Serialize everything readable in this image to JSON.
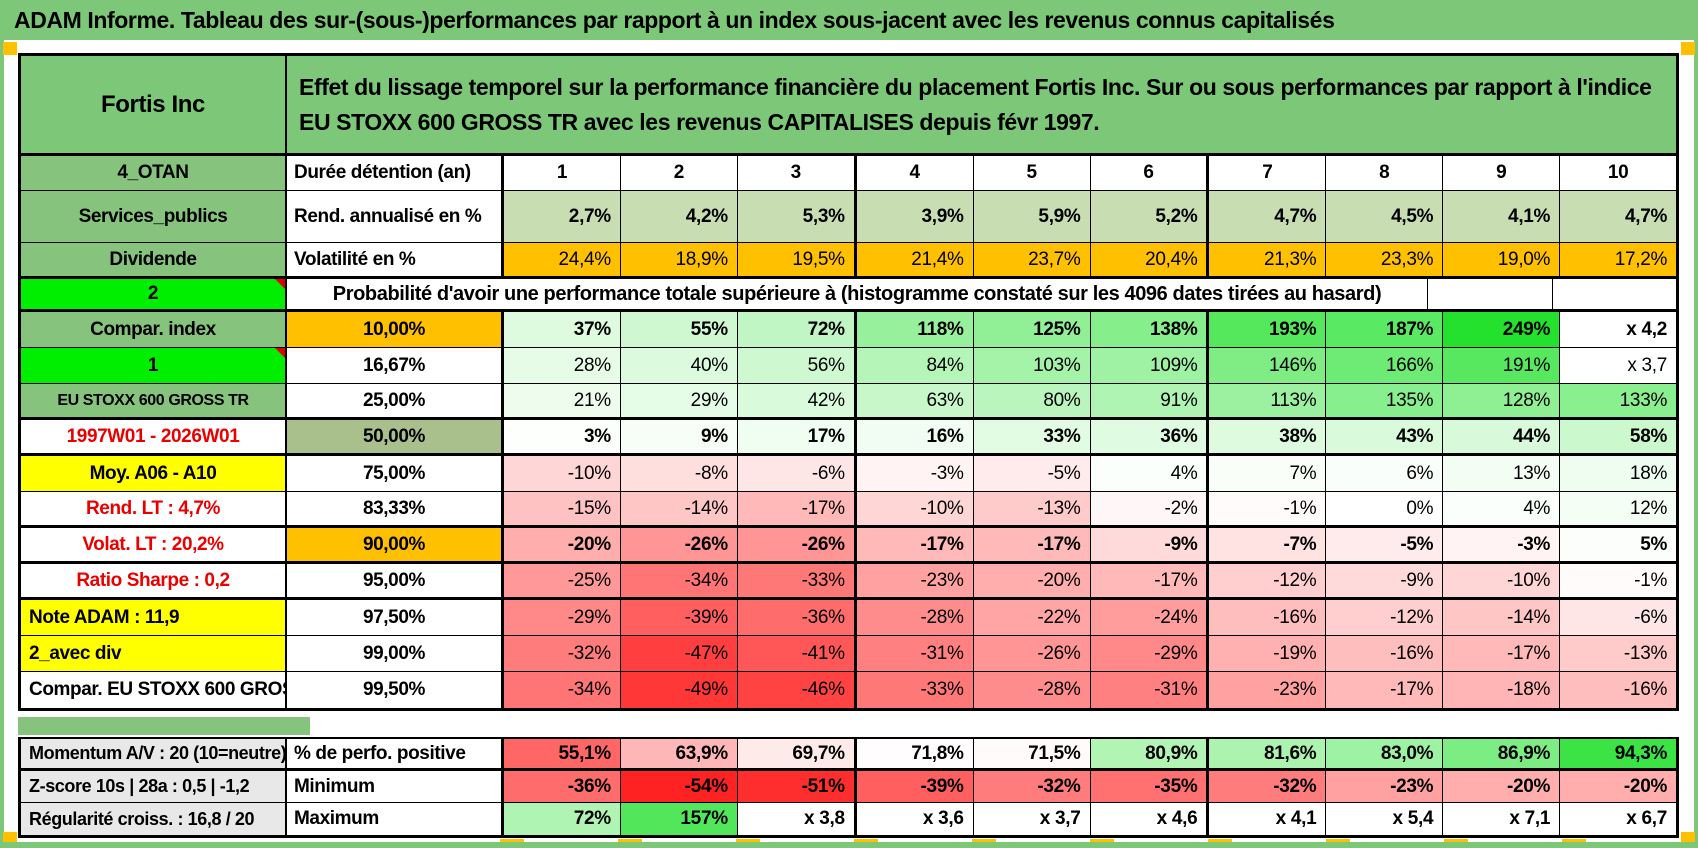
{
  "title": "ADAM Informe. Tableau des sur-(sous-)performances par rapport à un index sous-jacent avec les revenus connus capitalisés",
  "colors": {
    "frame_green": "#7cc878",
    "label_green": "#86c47d",
    "bright_green": "#00ee00",
    "highlight_yellow": "#ffff00",
    "accent_orange": "#ffc000",
    "mid_green": "#a9c08c",
    "gray_label": "#e9e8e8",
    "red_text": "#eb0000",
    "light_green_cells": "#c9ddb3",
    "heat_green_max": "#23e12d",
    "heat_red_max": "#ff1e1e"
  },
  "table": {
    "rows": [
      {
        "type": "header",
        "a": "Fortis Inc",
        "desc": "Effet du lissage temporel sur la performance financière du placement Fortis Inc. Sur ou sous performances par rapport à l'indice EU STOXX 600 GROSS TR avec les revenus CAPITALISES depuis févr 1997.",
        "thick": "b"
      },
      {
        "type": "cols",
        "a": "4_OTAN",
        "b": "Durée détention (an)",
        "cells": [
          "1",
          "2",
          "3",
          "4",
          "5",
          "6",
          "7",
          "8",
          "9",
          "10"
        ]
      },
      {
        "type": "vals",
        "a": "Services_publics",
        "b": "Rend. annualisé en %",
        "cell_bg": "#c9ddb3",
        "bold": true,
        "cells": [
          "2,7%",
          "4,2%",
          "5,3%",
          "3,9%",
          "5,9%",
          "5,2%",
          "4,7%",
          "4,5%",
          "4,1%",
          "4,7%"
        ]
      },
      {
        "type": "vals",
        "a": "Dividende",
        "b": "Volatilité en %",
        "cell_bg": "#ffc000",
        "thick": "b",
        "cells": [
          "24,4%",
          "18,9%",
          "19,5%",
          "21,4%",
          "23,7%",
          "20,4%",
          "21,3%",
          "23,3%",
          "19,0%",
          "17,2%"
        ]
      },
      {
        "type": "span",
        "a": "2",
        "a_cls": "b",
        "a_note": true,
        "tail": 2,
        "thick": "b",
        "text": "Probabilité d'avoir une performance totale supérieure à (histogramme constaté sur les 4096 dates tirées au hasard)"
      },
      {
        "type": "heat",
        "a": "Compar. index",
        "a_cls": "g",
        "b": "10,00%",
        "b_cls": "o",
        "bold": true,
        "cells": [
          "37%",
          "55%",
          "72%",
          "118%",
          "125%",
          "138%",
          "193%",
          "187%",
          "249%",
          "x 4,2"
        ]
      },
      {
        "type": "heat",
        "a": "1",
        "a_cls": "b",
        "a_note": true,
        "b": "16,67%",
        "cells": [
          "28%",
          "40%",
          "56%",
          "84%",
          "103%",
          "109%",
          "146%",
          "166%",
          "191%",
          "x 3,7"
        ]
      },
      {
        "type": "heat",
        "a": "EU STOXX 600 GROSS TR",
        "a_cls": "g small",
        "b": "25,00%",
        "thick": "b",
        "cells": [
          "21%",
          "29%",
          "42%",
          "63%",
          "80%",
          "91%",
          "113%",
          "135%",
          "128%",
          "133%"
        ]
      },
      {
        "type": "heat",
        "a": "1997W01 - 2026W01",
        "a_cls": "w redtxt",
        "b": "50,00%",
        "b_cls": "g50",
        "bold": true,
        "thick": "b",
        "cells": [
          "3%",
          "9%",
          "17%",
          "16%",
          "33%",
          "36%",
          "38%",
          "43%",
          "44%",
          "58%"
        ]
      },
      {
        "type": "heat",
        "a": "Moy. A06 - A10",
        "a_cls": "y",
        "b": "75,00%",
        "cells": [
          "-10%",
          "-8%",
          "-6%",
          "-3%",
          "-5%",
          "4%",
          "7%",
          "6%",
          "13%",
          "18%"
        ]
      },
      {
        "type": "heat",
        "a": "Rend. LT :   4,7%",
        "a_cls": "w redtxt",
        "b": "83,33%",
        "thick": "b",
        "cells": [
          "-15%",
          "-14%",
          "-17%",
          "-10%",
          "-13%",
          "-2%",
          "-1%",
          "0%",
          "4%",
          "12%"
        ]
      },
      {
        "type": "heat",
        "a": "Volat. LT :   20,2%",
        "a_cls": "w redtxt",
        "b": "90,00%",
        "b_cls": "o",
        "bold": true,
        "thick": "b",
        "cells": [
          "-20%",
          "-26%",
          "-26%",
          "-17%",
          "-17%",
          "-9%",
          "-7%",
          "-5%",
          "-3%",
          "5%"
        ]
      },
      {
        "type": "heat",
        "a": "Ratio Sharpe :   0,2",
        "a_cls": "w redtxt",
        "b": "95,00%",
        "thick": "b",
        "cells": [
          "-25%",
          "-34%",
          "-33%",
          "-23%",
          "-20%",
          "-17%",
          "-12%",
          "-9%",
          "-10%",
          "-1%"
        ]
      },
      {
        "type": "heat",
        "a": "Note ADAM : 11,9",
        "a_cls": "y left",
        "b": "97,50%",
        "cells": [
          "-29%",
          "-39%",
          "-36%",
          "-28%",
          "-22%",
          "-24%",
          "-16%",
          "-12%",
          "-14%",
          "-6%"
        ]
      },
      {
        "type": "heat",
        "a": "2_avec div",
        "a_cls": "y left",
        "b": "99,00%",
        "cells": [
          "-32%",
          "-47%",
          "-41%",
          "-31%",
          "-26%",
          "-29%",
          "-19%",
          "-16%",
          "-17%",
          "-13%"
        ]
      },
      {
        "type": "heat",
        "a": "Compar. EU STOXX 600 GROSS TR",
        "a_cls": "w left",
        "b": "99,50%",
        "cells": [
          "-34%",
          "-49%",
          "-46%",
          "-33%",
          "-28%",
          "-31%",
          "-23%",
          "-17%",
          "-18%",
          "-16%"
        ]
      }
    ],
    "bottom_rows": [
      {
        "a": "Momentum A/V : 20 (10=neutre)",
        "b": "% de perfo. positive",
        "bold": true,
        "thick": "b",
        "cmap": {
          "center": 72,
          "pos": 25,
          "neg": 25
        },
        "cells": [
          "55,1%",
          "63,9%",
          "69,7%",
          "71,8%",
          "71,5%",
          "80,9%",
          "81,6%",
          "83,0%",
          "86,9%",
          "94,3%"
        ]
      },
      {
        "a": "Z-score 10s | 28a : 0,5 | -1,2",
        "b": "Minimum",
        "bold": true,
        "cells": [
          "-36%",
          "-54%",
          "-51%",
          "-39%",
          "-32%",
          "-35%",
          "-32%",
          "-23%",
          "-20%",
          "-20%"
        ]
      },
      {
        "a": "Régularité croiss. : 16,8 / 20",
        "b": "Maximum",
        "bold": true,
        "cmap": {
          "pos": 200
        },
        "cells": [
          "72%",
          "157%",
          "x 3,8",
          "x 3,6",
          "x 3,7",
          "x 4,6",
          "x 4,1",
          "x 5,4",
          "x 7,1",
          "x 6,7"
        ]
      }
    ]
  }
}
